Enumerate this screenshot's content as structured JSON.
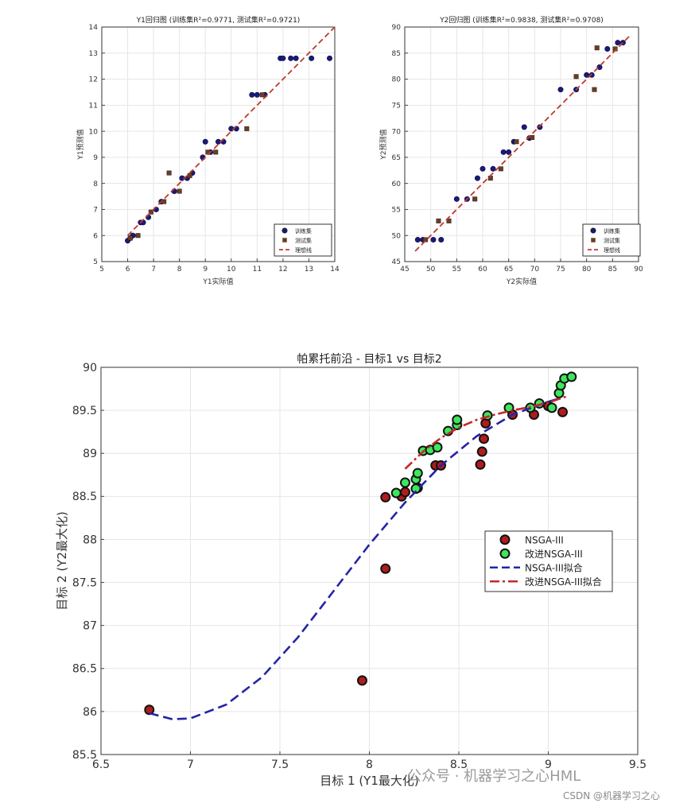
{
  "chart_data": [
    {
      "type": "scatter",
      "title": "Y1回归图 (训练集R²=0.9771, 测试集R²=0.9721)",
      "xlabel": "Y1实际值",
      "ylabel": "Y1预测值",
      "xlim": [
        5,
        14
      ],
      "ylim": [
        5,
        14
      ],
      "xticks": [
        "5",
        "6",
        "7",
        "8",
        "9",
        "10",
        "11",
        "12",
        "13",
        "14"
      ],
      "yticks": [
        "5",
        "6",
        "7",
        "8",
        "9",
        "10",
        "11",
        "12",
        "13",
        "14"
      ],
      "grid": true,
      "legend_position": "bottom-right",
      "series": [
        {
          "name": "训练集",
          "marker": "circle",
          "color": "#1a1a7a",
          "x": [
            6.0,
            6.1,
            6.2,
            6.5,
            6.6,
            6.8,
            7.1,
            7.3,
            7.8,
            8.1,
            8.3,
            8.5,
            8.9,
            9.0,
            9.2,
            9.5,
            9.7,
            10.0,
            10.2,
            10.8,
            11.0,
            11.3,
            11.9,
            12.0,
            12.3,
            12.5,
            13.1,
            13.8
          ],
          "y": [
            5.8,
            5.9,
            6.0,
            6.5,
            6.5,
            6.7,
            7.0,
            7.3,
            7.7,
            8.2,
            8.2,
            8.4,
            9.0,
            9.6,
            9.2,
            9.6,
            9.6,
            10.1,
            10.1,
            11.4,
            11.4,
            11.4,
            12.8,
            12.8,
            12.8,
            12.8,
            12.8,
            12.8
          ]
        },
        {
          "name": "测试集",
          "marker": "square",
          "color": "#6b3d22",
          "x": [
            6.1,
            6.4,
            6.9,
            7.4,
            7.6,
            8.0,
            8.4,
            9.1,
            9.4,
            10.6,
            11.2
          ],
          "y": [
            5.9,
            6.0,
            6.9,
            7.3,
            8.4,
            7.7,
            8.3,
            9.2,
            9.2,
            10.1,
            11.4
          ]
        },
        {
          "name": "理想线",
          "line": "dashed",
          "color": "#c0392b",
          "x": [
            6.0,
            14.0
          ],
          "y": [
            6.0,
            14.0
          ]
        }
      ]
    },
    {
      "type": "scatter",
      "title": "Y2回归图 (训练集R²=0.9838, 测试集R²=0.9708)",
      "xlabel": "Y2实际值",
      "ylabel": "Y2预测值",
      "xlim": [
        45,
        90
      ],
      "ylim": [
        45,
        90
      ],
      "xticks": [
        "45",
        "50",
        "55",
        "60",
        "65",
        "70",
        "75",
        "80",
        "85",
        "90"
      ],
      "yticks": [
        "45",
        "50",
        "55",
        "60",
        "65",
        "70",
        "75",
        "80",
        "85",
        "90"
      ],
      "grid": true,
      "legend_position": "bottom-right",
      "series": [
        {
          "name": "训练集",
          "marker": "circle",
          "color": "#1a1a7a",
          "x": [
            47.5,
            48.5,
            50.5,
            52,
            55,
            57,
            59,
            60,
            62,
            64,
            65,
            66,
            68,
            69,
            71,
            75,
            78,
            80,
            81,
            82.5,
            84,
            86,
            87
          ],
          "y": [
            49.2,
            49.2,
            49.2,
            49.2,
            57,
            57,
            61,
            62.8,
            62.8,
            66,
            66,
            68,
            70.8,
            68.7,
            70.8,
            78,
            78,
            80.8,
            80.8,
            82.3,
            85.8,
            87,
            87
          ]
        },
        {
          "name": "测试集",
          "marker": "square",
          "color": "#6b3d22",
          "x": [
            49,
            51.5,
            53.5,
            58.5,
            61.5,
            63.5,
            66.5,
            69.5,
            78,
            81.5,
            82,
            85.5
          ],
          "y": [
            49.2,
            52.8,
            52.8,
            57,
            61,
            62.8,
            68,
            68.8,
            80.5,
            78,
            86,
            85.8
          ]
        },
        {
          "name": "理想线",
          "line": "dashed",
          "color": "#c0392b",
          "x": [
            47,
            88.5
          ],
          "y": [
            47,
            88.5
          ]
        }
      ]
    },
    {
      "type": "scatter",
      "title": "帕累托前沿 - 目标1 vs 目标2",
      "xlabel": "目标 1 (Y1最大化)",
      "ylabel": "目标 2 (Y2最大化)",
      "xlim": [
        6.5,
        9.5
      ],
      "ylim": [
        85.5,
        90
      ],
      "xticks": [
        "6.5",
        "7",
        "7.5",
        "8",
        "8.5",
        "9",
        "9.5"
      ],
      "yticks": [
        "85.5",
        "86",
        "86.5",
        "87",
        "87.5",
        "88",
        "88.5",
        "89",
        "89.5",
        "90"
      ],
      "grid": true,
      "legend_position": "right-middle",
      "series": [
        {
          "name": "NSGA-III",
          "marker": "circle",
          "color": "#b01c1c",
          "x": [
            6.77,
            7.96,
            8.09,
            8.09,
            8.18,
            8.2,
            8.27,
            8.37,
            8.4,
            8.62,
            8.63,
            8.64,
            8.65,
            8.8,
            8.92,
            9.0,
            9.08
          ],
          "y": [
            86.02,
            86.36,
            87.66,
            88.49,
            88.5,
            88.55,
            88.6,
            88.86,
            88.86,
            88.87,
            89.02,
            89.17,
            89.35,
            89.45,
            89.45,
            89.55,
            89.48
          ]
        },
        {
          "name": "改进NSGA-III",
          "marker": "circle",
          "color": "#3de65c",
          "x": [
            8.15,
            8.2,
            8.26,
            8.26,
            8.27,
            8.3,
            8.34,
            8.38,
            8.44,
            8.49,
            8.49,
            8.66,
            8.78,
            8.9,
            8.95,
            9.02,
            9.06,
            9.07,
            9.09,
            9.13
          ],
          "y": [
            88.54,
            88.66,
            88.59,
            88.7,
            88.77,
            89.03,
            89.04,
            89.07,
            89.26,
            89.33,
            89.39,
            89.44,
            89.53,
            89.53,
            89.58,
            89.53,
            89.7,
            89.79,
            89.87,
            89.89
          ]
        },
        {
          "name": "NSGA-III拟合",
          "line": "dashed",
          "color": "#2424a8",
          "x": [
            6.77,
            6.9,
            7.0,
            7.2,
            7.4,
            7.6,
            7.8,
            8.0,
            8.2,
            8.4,
            8.6,
            8.8,
            9.0,
            9.08
          ],
          "y": [
            85.98,
            85.91,
            85.92,
            86.08,
            86.4,
            86.86,
            87.4,
            87.94,
            88.43,
            88.86,
            89.2,
            89.45,
            89.6,
            89.65
          ]
        },
        {
          "name": "改进NSGA-III拟合",
          "line": "dashdot",
          "color": "#c62828",
          "x": [
            8.2,
            8.3,
            8.4,
            8.5,
            8.6,
            8.7,
            8.8,
            8.9,
            9.0,
            9.1
          ],
          "y": [
            88.82,
            89.02,
            89.18,
            89.3,
            89.39,
            89.45,
            89.5,
            89.54,
            89.59,
            89.66
          ]
        }
      ]
    }
  ],
  "watermark": {
    "wechat": "公众号 · 机器学习之心HML",
    "csdn": "CSDN @机器学习之心"
  }
}
